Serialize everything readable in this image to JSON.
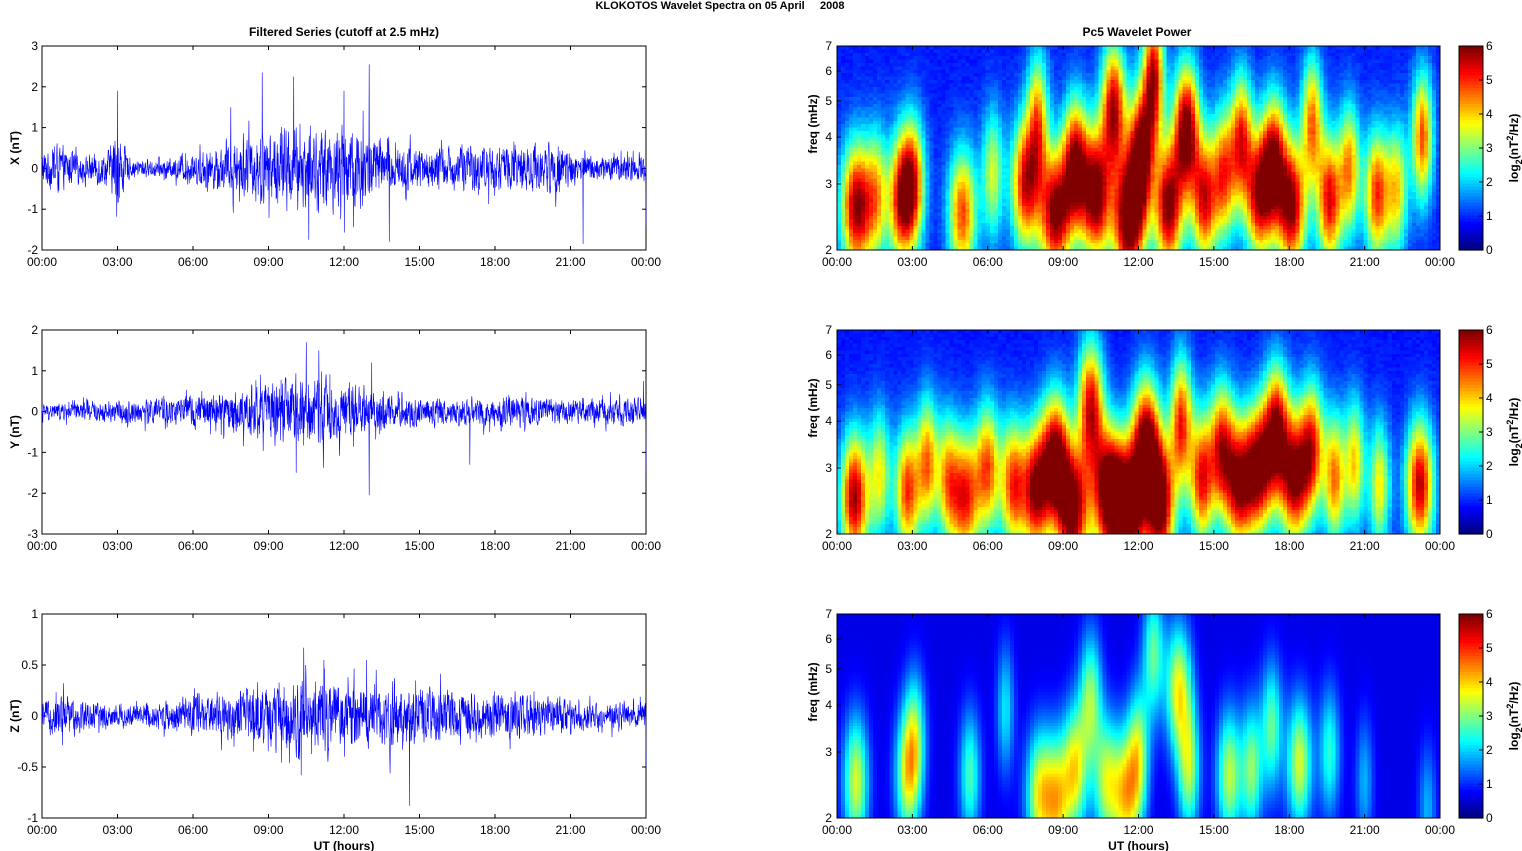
{
  "figure": {
    "title": "KLOKOTOS Wavelet Spectra on 05 April     2008",
    "left_title": "Filtered Series (cutoff at 2.5 mHz)",
    "right_title": "Pc5 Wavelet Power"
  },
  "time_ticks": [
    "00:00",
    "03:00",
    "06:00",
    "09:00",
    "12:00",
    "15:00",
    "18:00",
    "21:00",
    "00:00"
  ],
  "colors": {
    "series_line": "#0000ff",
    "colormap": "jet"
  },
  "chart_data": [
    {
      "type": "line",
      "panel": "X",
      "ylabel": "X (nT)",
      "xlabel": "",
      "x_unit": "hours UT",
      "xlim": [
        0,
        24
      ],
      "ylim": [
        -2,
        3
      ],
      "yticks": [
        -2,
        -1,
        0,
        1,
        2,
        3
      ],
      "envelope": [
        {
          "t": 0.0,
          "amp": 0.35
        },
        {
          "t": 0.6,
          "amp": 0.55
        },
        {
          "t": 1.5,
          "amp": 0.25
        },
        {
          "t": 2.7,
          "amp": 0.45
        },
        {
          "t": 3.0,
          "amp": 0.9
        },
        {
          "t": 3.5,
          "amp": 0.2
        },
        {
          "t": 5.0,
          "amp": 0.2
        },
        {
          "t": 7.5,
          "amp": 0.55
        },
        {
          "t": 9.5,
          "amp": 0.9
        },
        {
          "t": 10.7,
          "amp": 0.85
        },
        {
          "t": 12.5,
          "amp": 1.0
        },
        {
          "t": 13.5,
          "amp": 0.55
        },
        {
          "t": 15.5,
          "amp": 0.45
        },
        {
          "t": 18.0,
          "amp": 0.5
        },
        {
          "t": 20.5,
          "amp": 0.55
        },
        {
          "t": 21.5,
          "amp": 0.3
        },
        {
          "t": 24.0,
          "amp": 0.3
        }
      ],
      "spikes": [
        {
          "t": 3.0,
          "v": 1.9
        },
        {
          "t": 7.5,
          "v": 1.5
        },
        {
          "t": 8.75,
          "v": 2.35
        },
        {
          "t": 10.0,
          "v": 2.25
        },
        {
          "t": 10.6,
          "v": -1.75
        },
        {
          "t": 12.0,
          "v": 1.9
        },
        {
          "t": 13.0,
          "v": 2.55
        },
        {
          "t": 13.8,
          "v": -1.8
        },
        {
          "t": 21.5,
          "v": -1.85
        },
        {
          "t": 24.0,
          "v": -1.4
        }
      ]
    },
    {
      "type": "line",
      "panel": "Y",
      "ylabel": "Y (nT)",
      "xlabel": "",
      "x_unit": "hours UT",
      "xlim": [
        0,
        24
      ],
      "ylim": [
        -3,
        2
      ],
      "yticks": [
        -3,
        -2,
        -1,
        0,
        1,
        2
      ],
      "envelope": [
        {
          "t": 0.0,
          "amp": 0.18
        },
        {
          "t": 3.0,
          "amp": 0.25
        },
        {
          "t": 5.0,
          "amp": 0.3
        },
        {
          "t": 7.5,
          "amp": 0.45
        },
        {
          "t": 9.5,
          "amp": 0.7
        },
        {
          "t": 10.5,
          "amp": 0.8
        },
        {
          "t": 12.5,
          "amp": 0.55
        },
        {
          "t": 14.0,
          "amp": 0.35
        },
        {
          "t": 16.0,
          "amp": 0.3
        },
        {
          "t": 18.5,
          "amp": 0.35
        },
        {
          "t": 21.0,
          "amp": 0.25
        },
        {
          "t": 24.0,
          "amp": 0.3
        }
      ],
      "spikes": [
        {
          "t": 10.5,
          "v": 1.7
        },
        {
          "t": 11.0,
          "v": 1.5
        },
        {
          "t": 10.1,
          "v": -1.5
        },
        {
          "t": 13.0,
          "v": -2.05
        },
        {
          "t": 13.1,
          "v": 1.2
        },
        {
          "t": 17.0,
          "v": -1.3
        },
        {
          "t": 23.9,
          "v": 0.75
        },
        {
          "t": 24.0,
          "v": -1.5
        }
      ]
    },
    {
      "type": "line",
      "panel": "Z",
      "ylabel": "Z (nT)",
      "xlabel": "UT (hours)",
      "x_unit": "hours UT",
      "xlim": [
        0,
        24
      ],
      "ylim": [
        -1,
        1
      ],
      "yticks": [
        -1,
        -0.5,
        0,
        0.5,
        1
      ],
      "envelope": [
        {
          "t": 0.0,
          "amp": 0.12
        },
        {
          "t": 0.8,
          "amp": 0.2
        },
        {
          "t": 2.0,
          "amp": 0.12
        },
        {
          "t": 4.0,
          "amp": 0.1
        },
        {
          "t": 7.5,
          "amp": 0.2
        },
        {
          "t": 10.0,
          "amp": 0.32
        },
        {
          "t": 12.0,
          "amp": 0.3
        },
        {
          "t": 14.5,
          "amp": 0.25
        },
        {
          "t": 17.0,
          "amp": 0.2
        },
        {
          "t": 19.0,
          "amp": 0.2
        },
        {
          "t": 22.0,
          "amp": 0.12
        },
        {
          "t": 24.0,
          "amp": 0.12
        }
      ],
      "spikes": [
        {
          "t": 10.4,
          "v": 0.67
        },
        {
          "t": 11.2,
          "v": 0.55
        },
        {
          "t": 12.9,
          "v": 0.55
        },
        {
          "t": 10.3,
          "v": -0.58
        },
        {
          "t": 14.6,
          "v": -0.88
        },
        {
          "t": 24.0,
          "v": -0.5
        }
      ]
    },
    {
      "type": "heatmap",
      "panel": "X",
      "ylabel": "freq (mHz)",
      "xlabel": "",
      "xlim": [
        0,
        24
      ],
      "ylim": [
        2,
        7
      ],
      "y_scale": "log",
      "yticks": [
        2,
        3,
        4,
        5,
        6,
        7
      ],
      "colorbar": {
        "label": "log2(nT^2/Hz)",
        "range": [
          0,
          6
        ],
        "ticks": [
          0,
          1,
          2,
          3,
          4,
          5,
          6
        ]
      },
      "baseline": 0.35,
      "blobs": [
        {
          "t": 0.8,
          "f": 2.6,
          "p": 6.0,
          "w": 0.45
        },
        {
          "t": 1.6,
          "f": 2.8,
          "p": 3.0,
          "w": 0.3
        },
        {
          "t": 2.5,
          "f": 2.7,
          "p": 4.5,
          "w": 0.35
        },
        {
          "t": 3.0,
          "f": 3.0,
          "p": 5.0,
          "w": 0.35
        },
        {
          "t": 5.0,
          "f": 2.5,
          "p": 4.6,
          "w": 0.4
        },
        {
          "t": 6.2,
          "f": 3.2,
          "p": 3.0,
          "w": 0.3
        },
        {
          "t": 7.5,
          "f": 3.0,
          "p": 5.2,
          "w": 0.4
        },
        {
          "t": 8.0,
          "f": 4.5,
          "p": 3.8,
          "w": 0.3
        },
        {
          "t": 8.7,
          "f": 2.5,
          "p": 6.0,
          "w": 0.45
        },
        {
          "t": 9.5,
          "f": 3.4,
          "p": 5.6,
          "w": 0.35
        },
        {
          "t": 10.3,
          "f": 2.8,
          "p": 6.2,
          "w": 0.4
        },
        {
          "t": 11.0,
          "f": 4.8,
          "p": 5.5,
          "w": 0.35
        },
        {
          "t": 11.6,
          "f": 2.4,
          "p": 6.5,
          "w": 0.45
        },
        {
          "t": 12.1,
          "f": 3.6,
          "p": 6.0,
          "w": 0.35
        },
        {
          "t": 12.6,
          "f": 5.8,
          "p": 5.5,
          "w": 0.3
        },
        {
          "t": 13.2,
          "f": 2.6,
          "p": 6.0,
          "w": 0.4
        },
        {
          "t": 13.9,
          "f": 4.2,
          "p": 6.2,
          "w": 0.35
        },
        {
          "t": 14.6,
          "f": 2.7,
          "p": 5.0,
          "w": 0.35
        },
        {
          "t": 15.4,
          "f": 3.2,
          "p": 4.6,
          "w": 0.35
        },
        {
          "t": 16.1,
          "f": 4.0,
          "p": 4.4,
          "w": 0.3
        },
        {
          "t": 16.8,
          "f": 2.8,
          "p": 5.4,
          "w": 0.4
        },
        {
          "t": 17.4,
          "f": 3.5,
          "p": 5.0,
          "w": 0.35
        },
        {
          "t": 18.1,
          "f": 2.6,
          "p": 5.8,
          "w": 0.4
        },
        {
          "t": 18.9,
          "f": 4.4,
          "p": 4.2,
          "w": 0.3
        },
        {
          "t": 19.6,
          "f": 2.7,
          "p": 5.2,
          "w": 0.35
        },
        {
          "t": 20.4,
          "f": 3.3,
          "p": 4.0,
          "w": 0.3
        },
        {
          "t": 21.5,
          "f": 2.8,
          "p": 4.8,
          "w": 0.35
        },
        {
          "t": 22.3,
          "f": 2.9,
          "p": 3.4,
          "w": 0.3
        },
        {
          "t": 23.3,
          "f": 4.0,
          "p": 4.5,
          "w": 0.3
        }
      ]
    },
    {
      "type": "heatmap",
      "panel": "Y",
      "ylabel": "freq (mHz)",
      "xlabel": "",
      "xlim": [
        0,
        24
      ],
      "ylim": [
        2,
        7
      ],
      "y_scale": "log",
      "yticks": [
        2,
        3,
        4,
        5,
        6,
        7
      ],
      "colorbar": {
        "label": "log2(nT^2/Hz)",
        "range": [
          0,
          6
        ],
        "ticks": [
          0,
          1,
          2,
          3,
          4,
          5,
          6
        ]
      },
      "baseline": 0.3,
      "blobs": [
        {
          "t": 0.7,
          "f": 2.5,
          "p": 5.8,
          "w": 0.4
        },
        {
          "t": 1.7,
          "f": 2.9,
          "p": 3.2,
          "w": 0.3
        },
        {
          "t": 2.8,
          "f": 2.6,
          "p": 4.8,
          "w": 0.35
        },
        {
          "t": 3.6,
          "f": 3.1,
          "p": 4.2,
          "w": 0.3
        },
        {
          "t": 4.4,
          "f": 2.8,
          "p": 3.6,
          "w": 0.3
        },
        {
          "t": 5.1,
          "f": 2.5,
          "p": 5.0,
          "w": 0.4
        },
        {
          "t": 6.0,
          "f": 3.0,
          "p": 4.4,
          "w": 0.35
        },
        {
          "t": 7.0,
          "f": 2.7,
          "p": 4.6,
          "w": 0.35
        },
        {
          "t": 7.9,
          "f": 2.6,
          "p": 5.6,
          "w": 0.4
        },
        {
          "t": 8.7,
          "f": 3.2,
          "p": 5.8,
          "w": 0.4
        },
        {
          "t": 9.4,
          "f": 2.3,
          "p": 6.2,
          "w": 0.45
        },
        {
          "t": 10.1,
          "f": 4.4,
          "p": 5.2,
          "w": 0.35
        },
        {
          "t": 10.8,
          "f": 2.6,
          "p": 6.2,
          "w": 0.45
        },
        {
          "t": 11.6,
          "f": 2.3,
          "p": 6.5,
          "w": 0.5
        },
        {
          "t": 12.3,
          "f": 3.5,
          "p": 6.0,
          "w": 0.4
        },
        {
          "t": 12.9,
          "f": 2.4,
          "p": 6.2,
          "w": 0.4
        },
        {
          "t": 13.7,
          "f": 4.0,
          "p": 4.8,
          "w": 0.3
        },
        {
          "t": 14.5,
          "f": 2.8,
          "p": 5.0,
          "w": 0.35
        },
        {
          "t": 15.3,
          "f": 3.4,
          "p": 4.8,
          "w": 0.35
        },
        {
          "t": 16.0,
          "f": 2.7,
          "p": 5.4,
          "w": 0.4
        },
        {
          "t": 16.8,
          "f": 3.0,
          "p": 5.8,
          "w": 0.4
        },
        {
          "t": 17.5,
          "f": 3.8,
          "p": 5.4,
          "w": 0.35
        },
        {
          "t": 18.2,
          "f": 2.8,
          "p": 5.6,
          "w": 0.4
        },
        {
          "t": 18.9,
          "f": 3.4,
          "p": 4.8,
          "w": 0.35
        },
        {
          "t": 19.8,
          "f": 2.8,
          "p": 4.2,
          "w": 0.3
        },
        {
          "t": 20.6,
          "f": 3.1,
          "p": 3.6,
          "w": 0.3
        },
        {
          "t": 21.6,
          "f": 2.7,
          "p": 3.4,
          "w": 0.3
        },
        {
          "t": 23.2,
          "f": 2.7,
          "p": 5.6,
          "w": 0.4
        }
      ]
    },
    {
      "type": "heatmap",
      "panel": "Z",
      "ylabel": "freq (mHz)",
      "xlabel": "UT (hours)",
      "xlim": [
        0,
        24
      ],
      "ylim": [
        2,
        7
      ],
      "y_scale": "log",
      "yticks": [
        2,
        3,
        4,
        5,
        6,
        7
      ],
      "colorbar": {
        "label": "log2(nT^2/Hz)",
        "range": [
          0,
          6
        ],
        "ticks": [
          0,
          1,
          2,
          3,
          4,
          5,
          6
        ]
      },
      "baseline": 0.0,
      "blobs": [
        {
          "t": 0.75,
          "f": 2.5,
          "p": 3.4,
          "w": 0.35
        },
        {
          "t": 2.8,
          "f": 2.6,
          "p": 3.2,
          "w": 0.35
        },
        {
          "t": 3.1,
          "f": 3.3,
          "p": 2.4,
          "w": 0.3
        },
        {
          "t": 5.3,
          "f": 2.6,
          "p": 2.4,
          "w": 0.3
        },
        {
          "t": 6.7,
          "f": 3.9,
          "p": 1.8,
          "w": 0.25
        },
        {
          "t": 8.1,
          "f": 2.3,
          "p": 3.6,
          "w": 0.4
        },
        {
          "t": 8.8,
          "f": 2.2,
          "p": 3.2,
          "w": 0.35
        },
        {
          "t": 9.5,
          "f": 2.7,
          "p": 3.6,
          "w": 0.35
        },
        {
          "t": 10.1,
          "f": 4.2,
          "p": 2.8,
          "w": 0.3
        },
        {
          "t": 10.7,
          "f": 2.5,
          "p": 3.0,
          "w": 0.35
        },
        {
          "t": 11.5,
          "f": 2.3,
          "p": 3.8,
          "w": 0.4
        },
        {
          "t": 12.0,
          "f": 3.0,
          "p": 2.8,
          "w": 0.3
        },
        {
          "t": 12.6,
          "f": 5.5,
          "p": 2.6,
          "w": 0.3
        },
        {
          "t": 13.6,
          "f": 4.4,
          "p": 3.6,
          "w": 0.35
        },
        {
          "t": 14.0,
          "f": 2.7,
          "p": 3.0,
          "w": 0.3
        },
        {
          "t": 15.6,
          "f": 2.6,
          "p": 3.2,
          "w": 0.35
        },
        {
          "t": 16.5,
          "f": 2.7,
          "p": 2.8,
          "w": 0.3
        },
        {
          "t": 17.3,
          "f": 3.5,
          "p": 2.6,
          "w": 0.3
        },
        {
          "t": 18.4,
          "f": 2.8,
          "p": 3.4,
          "w": 0.35
        },
        {
          "t": 19.6,
          "f": 3.0,
          "p": 2.2,
          "w": 0.3
        },
        {
          "t": 21.0,
          "f": 2.5,
          "p": 1.4,
          "w": 0.25
        },
        {
          "t": 23.5,
          "f": 2.1,
          "p": 1.4,
          "w": 0.25
        }
      ]
    }
  ]
}
